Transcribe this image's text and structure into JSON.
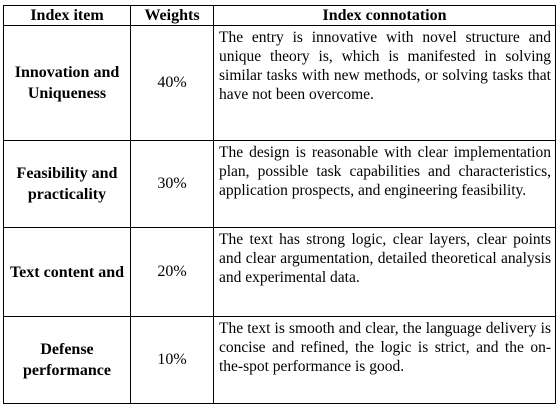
{
  "table": {
    "headers": [
      "Index item",
      "Weights",
      "Index connotation"
    ],
    "rows": [
      {
        "item": "Innovation and Uniqueness",
        "weight": "40%",
        "connotation": "The entry is innovative with novel structure and unique theory is, which is manifested in solving similar tasks with new methods, or solving tasks that have not been overcome."
      },
      {
        "item": "Feasibility and practicality",
        "weight": "30%",
        "connotation": "The design is reasonable with clear implementation plan, possible task capabilities and characteristics, application prospects, and engineering feasibility."
      },
      {
        "item": "Text content and",
        "weight": "20%",
        "connotation": "The text has strong logic, clear layers, clear points and clear argumentation, detailed theoretical analysis and experimental data."
      },
      {
        "item": "Defense performance",
        "weight": "10%",
        "connotation": "The text is smooth and clear, the language delivery is concise and refined, the logic is strict, and the on-the-spot performance is good."
      }
    ]
  }
}
